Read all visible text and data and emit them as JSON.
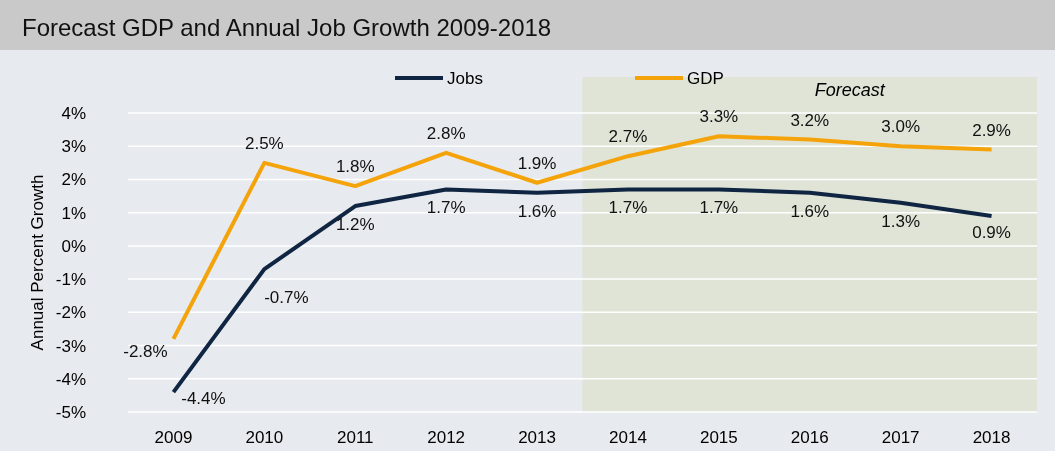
{
  "chart_data": {
    "type": "line",
    "title": "Forecast GDP and Annual Job Growth 2009-2018",
    "ylabel": "Annual Percent Growth",
    "categories": [
      "2009",
      "2010",
      "2011",
      "2012",
      "2013",
      "2014",
      "2015",
      "2016",
      "2017",
      "2018"
    ],
    "series": [
      {
        "name": "Jobs",
        "color": "#0f2542",
        "values": [
          -4.4,
          -0.7,
          1.2,
          1.7,
          1.6,
          1.7,
          1.7,
          1.6,
          1.3,
          0.9
        ],
        "value_labels": [
          "-4.4%",
          "-0.7%",
          "1.2%",
          "1.7%",
          "1.6%",
          "1.7%",
          "1.7%",
          "1.6%",
          "1.3%",
          "0.9%"
        ]
      },
      {
        "name": "GDP",
        "color": "#f5a30a",
        "values": [
          -2.8,
          2.5,
          1.8,
          2.8,
          1.9,
          2.7,
          3.3,
          3.2,
          3.0,
          2.9
        ],
        "value_labels": [
          "-2.8%",
          "2.5%",
          "1.8%",
          "2.8%",
          "1.9%",
          "2.7%",
          "3.3%",
          "3.2%",
          "3.0%",
          "2.9%"
        ]
      }
    ],
    "ylim": [
      -5,
      4
    ],
    "yticks": [
      {
        "value": -5,
        "label": "-5%"
      },
      {
        "value": -4,
        "label": "-4%"
      },
      {
        "value": -3,
        "label": "-3%"
      },
      {
        "value": -2,
        "label": "-2%"
      },
      {
        "value": -1,
        "label": "-1%"
      },
      {
        "value": 0,
        "label": "0%"
      },
      {
        "value": 1,
        "label": "1%"
      },
      {
        "value": 2,
        "label": "2%"
      },
      {
        "value": 3,
        "label": "3%"
      },
      {
        "value": 4,
        "label": "4%"
      }
    ],
    "bands": [
      {
        "axis": "x",
        "from": "2014",
        "to": "2018",
        "label": "Forecast",
        "color": "#dfe4d7"
      }
    ],
    "grid": "y",
    "legend": "top",
    "marker": "none",
    "line_style": "solid"
  }
}
